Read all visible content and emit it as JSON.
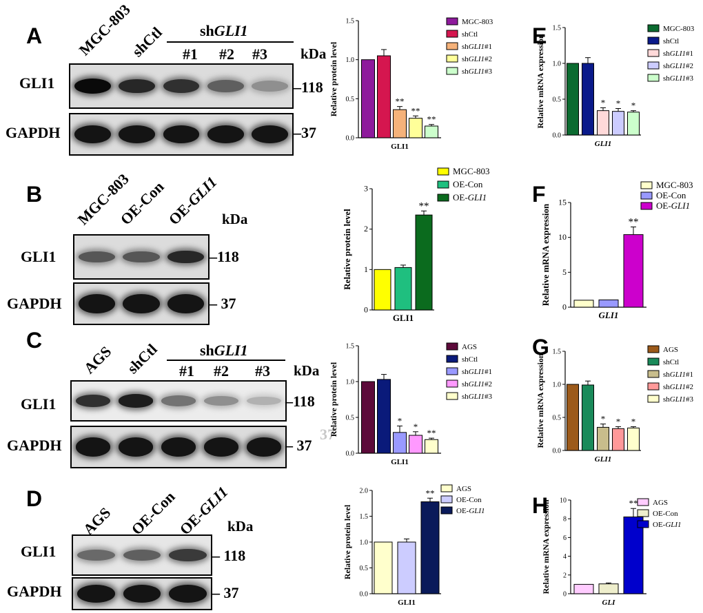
{
  "panels": {
    "A": {
      "letter": "A",
      "lanes": [
        "MGC-803",
        "shCtl"
      ],
      "sh_prefix": "sh",
      "sh_gene": "GLI1",
      "sub_lanes": [
        "#1",
        "#2",
        "#3"
      ],
      "kda": "kDa",
      "rows": [
        {
          "label": "GLI1",
          "marker": "118"
        },
        {
          "label": "GAPDH",
          "marker": "37"
        }
      ],
      "gli1_intensity": [
        1.0,
        0.85,
        0.8,
        0.55,
        0.3
      ]
    },
    "B": {
      "letter": "B",
      "lanes": [
        "MGC-803",
        "OE-Con"
      ],
      "lane3_prefix": "OE-",
      "lane3_gene": "GLI1",
      "kda": "kDa",
      "rows": [
        {
          "label": "GLI1",
          "marker": "118"
        },
        {
          "label": "GAPDH",
          "marker": "37"
        }
      ],
      "gli1_intensity": [
        0.6,
        0.6,
        0.85
      ]
    },
    "C": {
      "letter": "C",
      "lanes": [
        "AGS",
        "shCtl"
      ],
      "sh_prefix": "sh",
      "sh_gene": "GLI1",
      "sub_lanes": [
        "#1",
        "#2",
        "#3"
      ],
      "kda": "kDa",
      "rows": [
        {
          "label": "GLI1",
          "marker": "118"
        },
        {
          "label": "GAPDH",
          "marker": "37"
        }
      ],
      "ghost": "37",
      "gli1_intensity": [
        0.8,
        0.9,
        0.45,
        0.3,
        0.12
      ]
    },
    "D": {
      "letter": "D",
      "lanes": [
        "AGS",
        "OE-Con"
      ],
      "lane3_prefix": "OE-",
      "lane3_gene": "GLI1",
      "kda": "kDa",
      "rows": [
        {
          "label": "GLI1",
          "marker": "118"
        },
        {
          "label": "GAPDH",
          "marker": "37"
        }
      ],
      "gli1_intensity": [
        0.5,
        0.55,
        0.75
      ]
    },
    "E": {
      "letter": "E"
    },
    "F": {
      "letter": "F"
    },
    "G": {
      "letter": "G"
    },
    "H": {
      "letter": "H"
    }
  },
  "chart_data": [
    {
      "id": "A_protein",
      "type": "bar",
      "title": "",
      "ylabel": "Relative protein level",
      "xlabel": "GLI1",
      "xlabel_italic": false,
      "ylim": [
        0,
        1.5
      ],
      "yticks": [
        0.0,
        0.5,
        1.0,
        1.5
      ],
      "categories": [
        "MGC-803",
        "shCtl",
        "shGLI1#1",
        "shGLI1#2",
        "shGLI1#3"
      ],
      "values": [
        1.0,
        1.05,
        0.36,
        0.25,
        0.15
      ],
      "errors": [
        0,
        0.08,
        0.04,
        0.03,
        0.02
      ],
      "significance": [
        "",
        "",
        "**",
        "**",
        "**"
      ],
      "legend": [
        {
          "prefix": "MGC-803",
          "italic": "",
          "suffix": ""
        },
        {
          "prefix": "shCtl",
          "italic": "",
          "suffix": ""
        },
        {
          "prefix": "sh",
          "italic": "GLI1",
          "suffix": "#1"
        },
        {
          "prefix": "sh",
          "italic": "GLI1",
          "suffix": "#2"
        },
        {
          "prefix": "sh",
          "italic": "GLI1",
          "suffix": "#3"
        }
      ],
      "colors": [
        "#8e1a9c",
        "#d5164f",
        "#f5b27a",
        "#ffff99",
        "#ccffcc"
      ]
    },
    {
      "id": "E_mrna",
      "type": "bar",
      "title": "",
      "ylabel": "Relative mRNA expression",
      "xlabel": "GLI1",
      "xlabel_italic": true,
      "ylim": [
        0,
        1.5
      ],
      "yticks": [
        0.0,
        0.5,
        1.0,
        1.5
      ],
      "categories": [
        "MGC-803",
        "shCtl",
        "shGLI1#1",
        "shGLI1#2",
        "shGLI1#3"
      ],
      "values": [
        1.0,
        1.0,
        0.34,
        0.33,
        0.32
      ],
      "errors": [
        0,
        0.08,
        0.04,
        0.04,
        0.02
      ],
      "significance": [
        "",
        "",
        "*",
        "*",
        "*"
      ],
      "legend": [
        {
          "prefix": "MGC-803",
          "italic": "",
          "suffix": ""
        },
        {
          "prefix": "shCtl",
          "italic": "",
          "suffix": ""
        },
        {
          "prefix": "sh",
          "italic": "GLI1",
          "suffix": "#1"
        },
        {
          "prefix": "sh",
          "italic": "GLI1",
          "suffix": "#2"
        },
        {
          "prefix": "sh",
          "italic": "GLI1",
          "suffix": "#3"
        }
      ],
      "colors": [
        "#0b6b30",
        "#0a1a8a",
        "#ffd9d9",
        "#ccccff",
        "#ccffcc"
      ]
    },
    {
      "id": "B_protein",
      "type": "bar",
      "title": "",
      "ylabel": "Relative protein level",
      "xlabel": "GLI1",
      "xlabel_italic": false,
      "ylim": [
        0,
        3
      ],
      "yticks": [
        0,
        1,
        2,
        3
      ],
      "categories": [
        "MGC-803",
        "OE-Con",
        "OE-GLI1"
      ],
      "values": [
        1.0,
        1.05,
        2.35
      ],
      "errors": [
        0,
        0.06,
        0.1
      ],
      "significance": [
        "",
        "",
        "**"
      ],
      "legend": [
        {
          "prefix": "MGC-803",
          "italic": "",
          "suffix": ""
        },
        {
          "prefix": "OE-Con",
          "italic": "",
          "suffix": ""
        },
        {
          "prefix": "OE-",
          "italic": "GLI1",
          "suffix": ""
        }
      ],
      "colors": [
        "#ffff00",
        "#1fbf7f",
        "#0b6b1e"
      ]
    },
    {
      "id": "F_mrna",
      "type": "bar",
      "title": "",
      "ylabel": "Relative mRNA expression",
      "xlabel": "GLI1",
      "xlabel_italic": true,
      "ylim": [
        0,
        15
      ],
      "yticks": [
        0,
        5,
        10,
        15
      ],
      "categories": [
        "MGC-803",
        "OE-Con",
        "OE-GLI1"
      ],
      "values": [
        1.0,
        1.05,
        10.4
      ],
      "errors": [
        0,
        0,
        1.1
      ],
      "significance": [
        "",
        "",
        "**"
      ],
      "legend": [
        {
          "prefix": "MGC-803",
          "italic": "",
          "suffix": ""
        },
        {
          "prefix": "OE-Con",
          "italic": "",
          "suffix": ""
        },
        {
          "prefix": "OE-",
          "italic": "GLI1",
          "suffix": ""
        }
      ],
      "colors": [
        "#ffffcc",
        "#9999ff",
        "#cc00cc"
      ]
    },
    {
      "id": "C_protein",
      "type": "bar",
      "title": "",
      "ylabel": "Relative protein level",
      "xlabel": "GLI1",
      "xlabel_italic": false,
      "ylim": [
        0,
        1.5
      ],
      "yticks": [
        0.0,
        0.5,
        1.0,
        1.5
      ],
      "categories": [
        "AGS",
        "shCtl",
        "shGLI1#1",
        "shGLI1#2",
        "shGLI1#3"
      ],
      "values": [
        1.0,
        1.03,
        0.29,
        0.25,
        0.19
      ],
      "errors": [
        0,
        0.07,
        0.09,
        0.05,
        0.02
      ],
      "significance": [
        "",
        "",
        "*",
        "*",
        "**"
      ],
      "legend": [
        {
          "prefix": "AGS",
          "italic": "",
          "suffix": ""
        },
        {
          "prefix": "shCtl",
          "italic": "",
          "suffix": ""
        },
        {
          "prefix": "sh",
          "italic": "GLI1",
          "suffix": "#1"
        },
        {
          "prefix": "sh",
          "italic": "GLI1",
          "suffix": "#2"
        },
        {
          "prefix": "sh",
          "italic": "GLI1",
          "suffix": "#3"
        }
      ],
      "colors": [
        "#5c0a3a",
        "#0a1a7a",
        "#9999ff",
        "#ff99ff",
        "#ffffcc"
      ]
    },
    {
      "id": "G_mrna",
      "type": "bar",
      "title": "",
      "ylabel": "Relative mRNA expression",
      "xlabel": "GLI1",
      "xlabel_italic": true,
      "ylim": [
        0,
        1.5
      ],
      "yticks": [
        0.0,
        0.5,
        1.0,
        1.5
      ],
      "categories": [
        "AGS",
        "shCtl",
        "shGLI1#1",
        "shGLI1#2",
        "shGLI1#3"
      ],
      "values": [
        1.0,
        0.99,
        0.35,
        0.33,
        0.34
      ],
      "errors": [
        0,
        0.06,
        0.05,
        0.03,
        0.02
      ],
      "significance": [
        "",
        "",
        "*",
        "*",
        "*"
      ],
      "legend": [
        {
          "prefix": "AGS",
          "italic": "",
          "suffix": ""
        },
        {
          "prefix": "shCtl",
          "italic": "",
          "suffix": ""
        },
        {
          "prefix": "sh",
          "italic": "GLI1",
          "suffix": "#1"
        },
        {
          "prefix": "sh",
          "italic": "GLI1",
          "suffix": "#2"
        },
        {
          "prefix": "sh",
          "italic": "GLI1",
          "suffix": "#3"
        }
      ],
      "colors": [
        "#9c5a1a",
        "#1a8a5a",
        "#c8bd8c",
        "#ff9999",
        "#ffffcc"
      ]
    },
    {
      "id": "D_protein",
      "type": "bar",
      "title": "",
      "ylabel": "Relative protein level",
      "xlabel": "GLI1",
      "xlabel_italic": false,
      "ylim": [
        0,
        2.0
      ],
      "yticks": [
        0.0,
        0.5,
        1.0,
        1.5,
        2.0
      ],
      "categories": [
        "AGS",
        "OE-Con",
        "OE-GLI1"
      ],
      "values": [
        1.0,
        1.0,
        1.78
      ],
      "errors": [
        0,
        0.06,
        0.07
      ],
      "significance": [
        "",
        "",
        "**"
      ],
      "legend": [
        {
          "prefix": "AGS",
          "italic": "",
          "suffix": ""
        },
        {
          "prefix": "OE-Con",
          "italic": "",
          "suffix": ""
        },
        {
          "prefix": "OE-",
          "italic": "GLI1",
          "suffix": ""
        }
      ],
      "colors": [
        "#ffffcc",
        "#ccccff",
        "#0a1a5a"
      ]
    },
    {
      "id": "H_mrna",
      "type": "bar",
      "title": "",
      "ylabel": "Relative mRNA expression",
      "xlabel": "GLI",
      "xlabel_italic": true,
      "ylim": [
        0,
        10
      ],
      "yticks": [
        0,
        2,
        4,
        6,
        8,
        10
      ],
      "categories": [
        "AGS",
        "OE-Con",
        "OE-GLI1"
      ],
      "values": [
        1.0,
        1.05,
        8.2
      ],
      "errors": [
        0,
        0.1,
        0.9
      ],
      "significance": [
        "",
        "",
        "**"
      ],
      "legend": [
        {
          "prefix": "AGS",
          "italic": "",
          "suffix": ""
        },
        {
          "prefix": "OE-Con",
          "italic": "",
          "suffix": ""
        },
        {
          "prefix": "OE-",
          "italic": "GLI1",
          "suffix": ""
        }
      ],
      "colors": [
        "#ffccff",
        "#eeeecc",
        "#0000cc"
      ]
    }
  ]
}
